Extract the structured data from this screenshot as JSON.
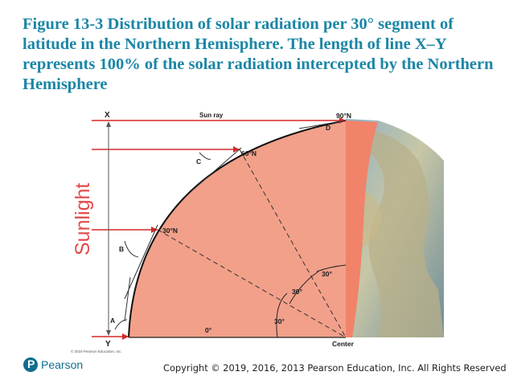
{
  "title": "Figure 13-3 Distribution of solar radiation per 30° segment of latitude in the Northern Hemisphere. The length of line X–Y represents 100% of the solar radiation intercepted by the Northern Hemisphere",
  "diagram": {
    "labels": {
      "x": "X",
      "y": "Y",
      "sun_ray": "Sun ray",
      "sunlight": "Sunlight",
      "lat_90": "90°N",
      "lat_60": "60°N",
      "lat_30": "30°N",
      "lat_0": "0°",
      "center": "Center",
      "a": "A",
      "b": "B",
      "c": "C",
      "d": "D",
      "angle_1": "30°",
      "angle_2": "30°",
      "angle_3": "30°",
      "credit": "© 2019 Pearson Education, Inc."
    },
    "colors": {
      "ray": "#d62828",
      "earth_fill": "#f2a08a",
      "earth_dark": "#f08a70",
      "sunlight_text": "#e34a4a",
      "ocean": "#6f9db8"
    }
  },
  "footer": {
    "logo_letter": "P",
    "logo_text": "Pearson",
    "copyright": "Copyright © 2019, 2016, 2013 Pearson Education, Inc. All Rights Reserved"
  }
}
